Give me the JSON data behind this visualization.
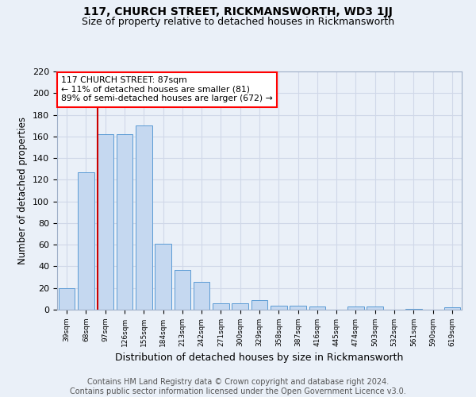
{
  "title": "117, CHURCH STREET, RICKMANSWORTH, WD3 1JJ",
  "subtitle": "Size of property relative to detached houses in Rickmansworth",
  "xlabel": "Distribution of detached houses by size in Rickmansworth",
  "ylabel": "Number of detached properties",
  "categories": [
    "39sqm",
    "68sqm",
    "97sqm",
    "126sqm",
    "155sqm",
    "184sqm",
    "213sqm",
    "242sqm",
    "271sqm",
    "300sqm",
    "329sqm",
    "358sqm",
    "387sqm",
    "416sqm",
    "445sqm",
    "474sqm",
    "503sqm",
    "532sqm",
    "561sqm",
    "590sqm",
    "619sqm"
  ],
  "values": [
    20,
    127,
    162,
    162,
    170,
    61,
    37,
    26,
    6,
    6,
    9,
    4,
    4,
    3,
    0,
    3,
    3,
    0,
    1,
    0,
    2
  ],
  "bar_color": "#c5d8f0",
  "bar_edge_color": "#5b9bd5",
  "annotation_text": "117 CHURCH STREET: 87sqm\n← 11% of detached houses are smaller (81)\n89% of semi-detached houses are larger (672) →",
  "annotation_box_color": "#ffffff",
  "annotation_box_edge_color": "#ff0000",
  "vline_color": "#cc0000",
  "vline_x": 1.6,
  "ylim": [
    0,
    220
  ],
  "yticks": [
    0,
    20,
    40,
    60,
    80,
    100,
    120,
    140,
    160,
    180,
    200,
    220
  ],
  "grid_color": "#d0d8e8",
  "background_color": "#eaf0f8",
  "footnote": "Contains HM Land Registry data © Crown copyright and database right 2024.\nContains public sector information licensed under the Open Government Licence v3.0.",
  "title_fontsize": 10,
  "subtitle_fontsize": 9,
  "xlabel_fontsize": 9,
  "ylabel_fontsize": 8.5,
  "footnote_fontsize": 7
}
